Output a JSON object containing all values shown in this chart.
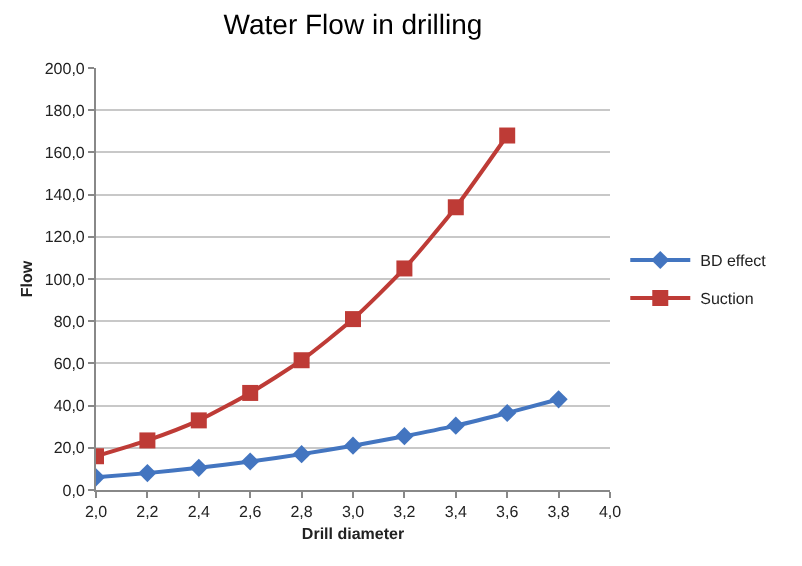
{
  "chart_data": {
    "type": "line",
    "title": "Water Flow in drilling",
    "xlabel": "Drill diameter",
    "ylabel": "Flow",
    "x": [
      2.0,
      2.2,
      2.4,
      2.6,
      2.8,
      3.0,
      3.2,
      3.4,
      3.6,
      3.8
    ],
    "series": [
      {
        "name": "BD effect",
        "color": "#4375c0",
        "marker": "diamond",
        "values": [
          6,
          8,
          10.5,
          13.5,
          17,
          21,
          25.5,
          30.5,
          36.5,
          43
        ]
      },
      {
        "name": "Suction",
        "color": "#be3b36",
        "marker": "square",
        "values": [
          16,
          23.5,
          33,
          46,
          61.5,
          81,
          105,
          134,
          168,
          null
        ]
      }
    ],
    "xlim": [
      2.0,
      4.0
    ],
    "xticks": [
      {
        "value": 2.0,
        "label": "2,0"
      },
      {
        "value": 2.2,
        "label": "2,2"
      },
      {
        "value": 2.4,
        "label": "2,4"
      },
      {
        "value": 2.6,
        "label": "2,6"
      },
      {
        "value": 2.8,
        "label": "2,8"
      },
      {
        "value": 3.0,
        "label": "3,0"
      },
      {
        "value": 3.2,
        "label": "3,2"
      },
      {
        "value": 3.4,
        "label": "3,4"
      },
      {
        "value": 3.6,
        "label": "3,6"
      },
      {
        "value": 3.8,
        "label": "3,8"
      },
      {
        "value": 4.0,
        "label": "4,0"
      }
    ],
    "ylim": [
      0,
      200
    ],
    "yticks": [
      {
        "value": 0,
        "label": "0,0"
      },
      {
        "value": 20,
        "label": "20,0"
      },
      {
        "value": 40,
        "label": "40,0"
      },
      {
        "value": 60,
        "label": "60,0"
      },
      {
        "value": 80,
        "label": "80,0"
      },
      {
        "value": 100,
        "label": "100,0"
      },
      {
        "value": 120,
        "label": "120,0"
      },
      {
        "value": 140,
        "label": "140,0"
      },
      {
        "value": 160,
        "label": "160,0"
      },
      {
        "value": 180,
        "label": "180,0"
      },
      {
        "value": 200,
        "label": "200,0"
      }
    ],
    "grid": "y",
    "legend": "right",
    "line_style": "solid"
  }
}
